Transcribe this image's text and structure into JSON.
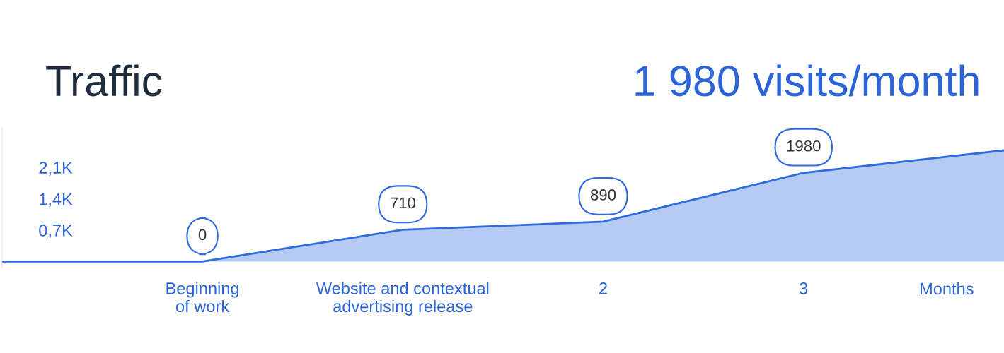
{
  "chart_data": {
    "type": "area",
    "title": "Traffic",
    "subtitle": "1 980 visits/month",
    "xlabel": "Months",
    "categories": [
      null,
      "Beginning of work",
      "Website and contextual advertising release",
      "2",
      "3",
      null
    ],
    "series": [
      {
        "color": "#2f6be0",
        "values": [
          0,
          0,
          710,
          890,
          1980,
          2480
        ],
        "value_labels": [
          null,
          "0",
          "710",
          "890",
          "1980",
          null
        ]
      }
    ],
    "ylim": [
      -150,
      3000
    ],
    "yticks": [
      {
        "value": 700,
        "label": "0,7K"
      },
      {
        "value": 1400,
        "label": "1,4K"
      },
      {
        "value": 2100,
        "label": "2,1K"
      }
    ],
    "grid": false
  }
}
